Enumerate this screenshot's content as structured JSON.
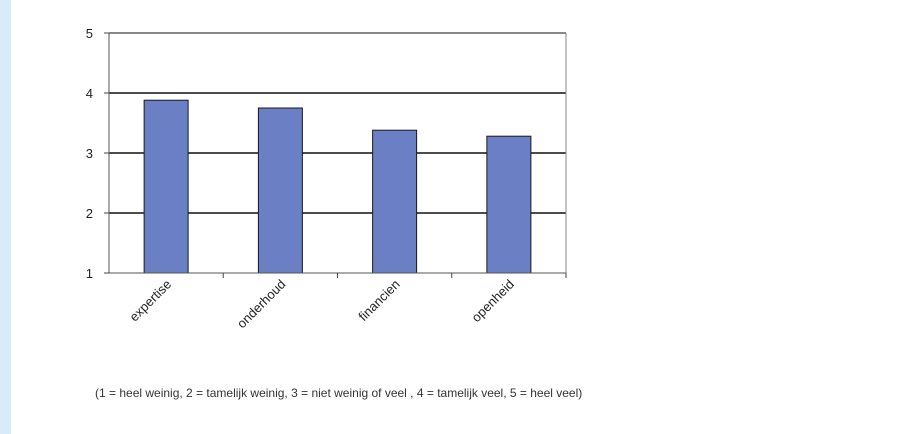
{
  "chart_data": {
    "type": "bar",
    "categories": [
      "expertise",
      "onderhoud",
      "financien",
      "openheid"
    ],
    "values": [
      3.88,
      3.75,
      3.38,
      3.28
    ],
    "ylim": [
      1,
      5
    ],
    "yticks": [
      1,
      2,
      3,
      4,
      5
    ],
    "grid": true,
    "bar_color": "#6b7fc4",
    "bar_border_color": "#1a1a1a",
    "legend": "none",
    "footnote": "(1 = heel weinig, 2 = tamelijk weinig, 3 = niet weinig of veel , 4 = tamelijk veel, 5 = heel veel)"
  }
}
